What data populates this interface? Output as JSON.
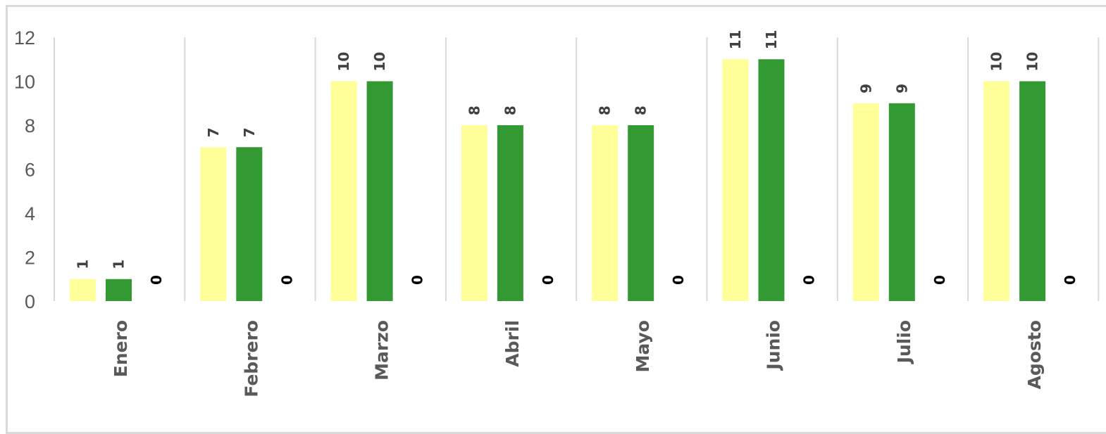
{
  "chart_data": {
    "type": "bar",
    "title": "",
    "xlabel": "",
    "ylabel": "",
    "ylim": [
      0,
      12
    ],
    "yticks": [
      0,
      2,
      4,
      6,
      8,
      10,
      12
    ],
    "grid": "vertical category separators",
    "legend": "none",
    "categories": [
      "Enero",
      "Febrero",
      "Marzo",
      "Abril",
      "Mayo",
      "Junio",
      "Julio",
      "Agosto"
    ],
    "series": [
      {
        "color": "#ffff99",
        "values": [
          1,
          7,
          10,
          8,
          8,
          11,
          9,
          10
        ]
      },
      {
        "color": "#339933",
        "values": [
          1,
          7,
          10,
          8,
          8,
          11,
          9,
          10
        ]
      },
      {
        "color": "#000000",
        "values": [
          0,
          0,
          0,
          0,
          0,
          0,
          0,
          0
        ]
      }
    ]
  }
}
